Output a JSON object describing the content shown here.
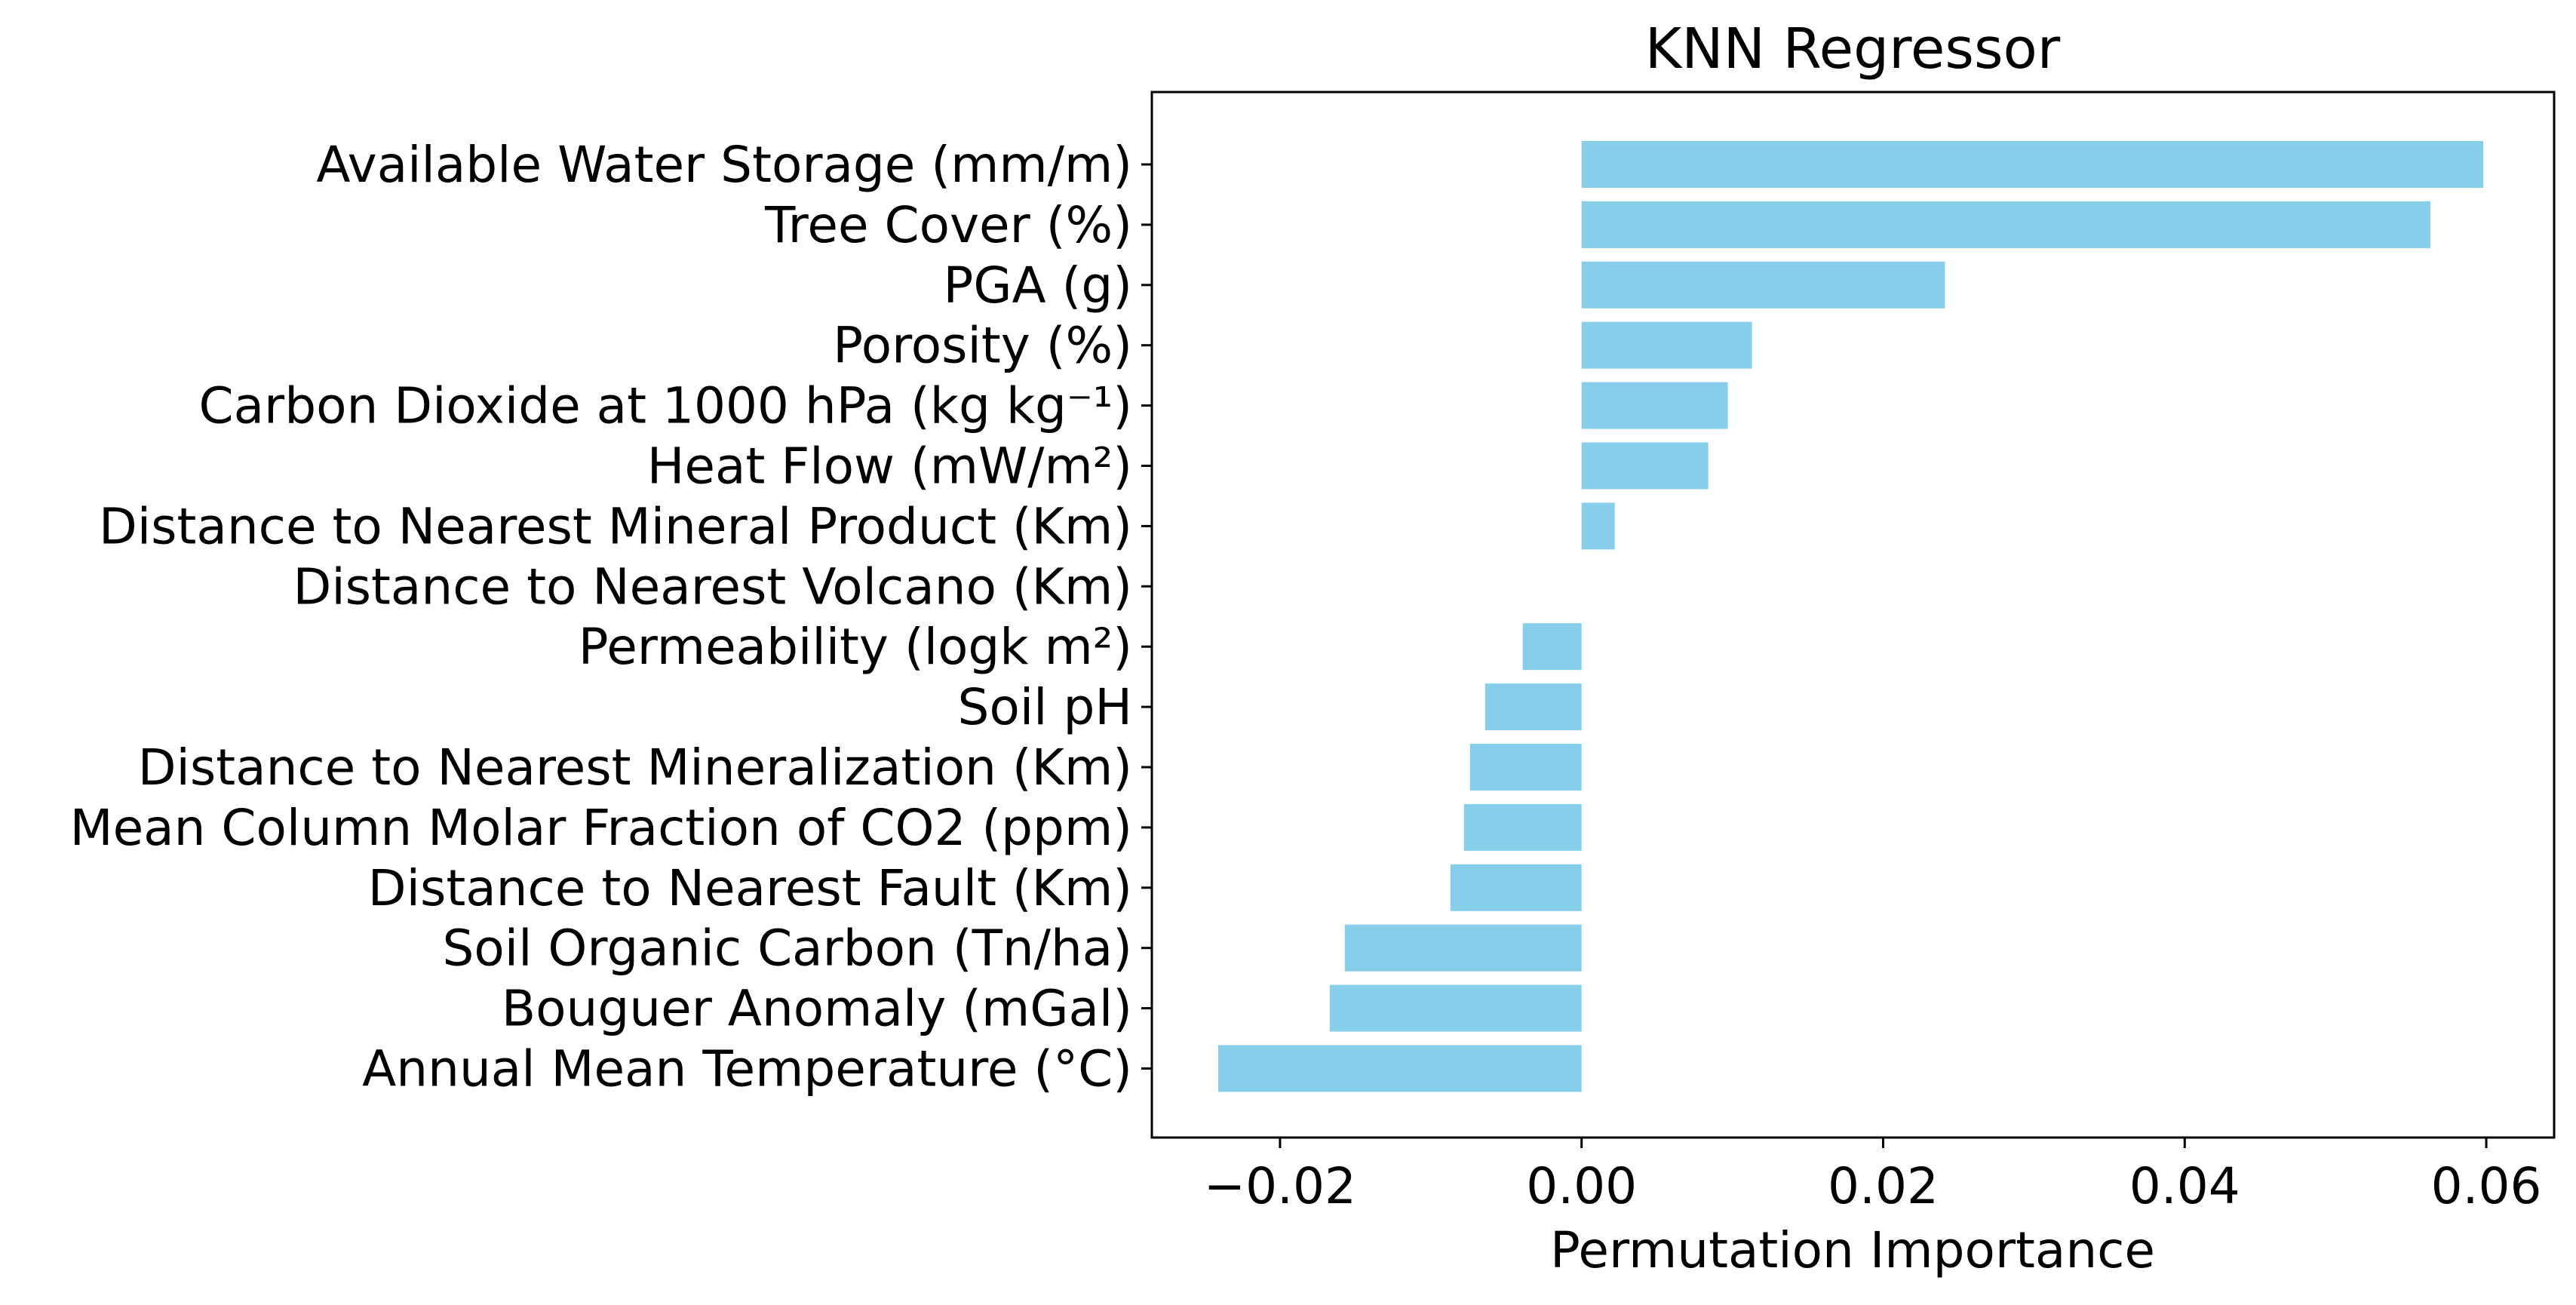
{
  "chart_data": {
    "type": "bar",
    "orientation": "horizontal",
    "title": "KNN Regressor",
    "xlabel": "Permutation Importance",
    "ylabel": "",
    "xlim": [
      -0.0285,
      0.0645
    ],
    "xticks": [
      -0.02,
      0.0,
      0.02,
      0.04,
      0.06
    ],
    "xtick_labels": [
      "−0.02",
      "0.00",
      "0.02",
      "0.04",
      "0.06"
    ],
    "grid": false,
    "bar_color": "#87ceeb",
    "categories": [
      "Available Water Storage (mm/m)",
      "Tree Cover (%)",
      "PGA (g)",
      "Porosity (%)",
      "Carbon Dioxide at 1000 hPa (kg kg⁻¹)",
      "Heat Flow (mW/m²)",
      "Distance to Nearest Mineral Product (Km)",
      "Distance to Nearest Volcano (Km)",
      "Permeability (logk m²)",
      "Soil pH",
      "Distance to Nearest Mineralization (Km)",
      "Mean Column Molar Fraction of CO2 (ppm)",
      "Distance to Nearest Fault (Km)",
      "Soil Organic Carbon (Tn/ha)",
      "Bouguer Anomaly (mGal)",
      "Annual Mean Temperature (°C)"
    ],
    "values": [
      0.0598,
      0.0563,
      0.0241,
      0.0113,
      0.0097,
      0.0084,
      0.0022,
      0.0,
      -0.0039,
      -0.0064,
      -0.0074,
      -0.0078,
      -0.0087,
      -0.0157,
      -0.0167,
      -0.0241
    ]
  }
}
